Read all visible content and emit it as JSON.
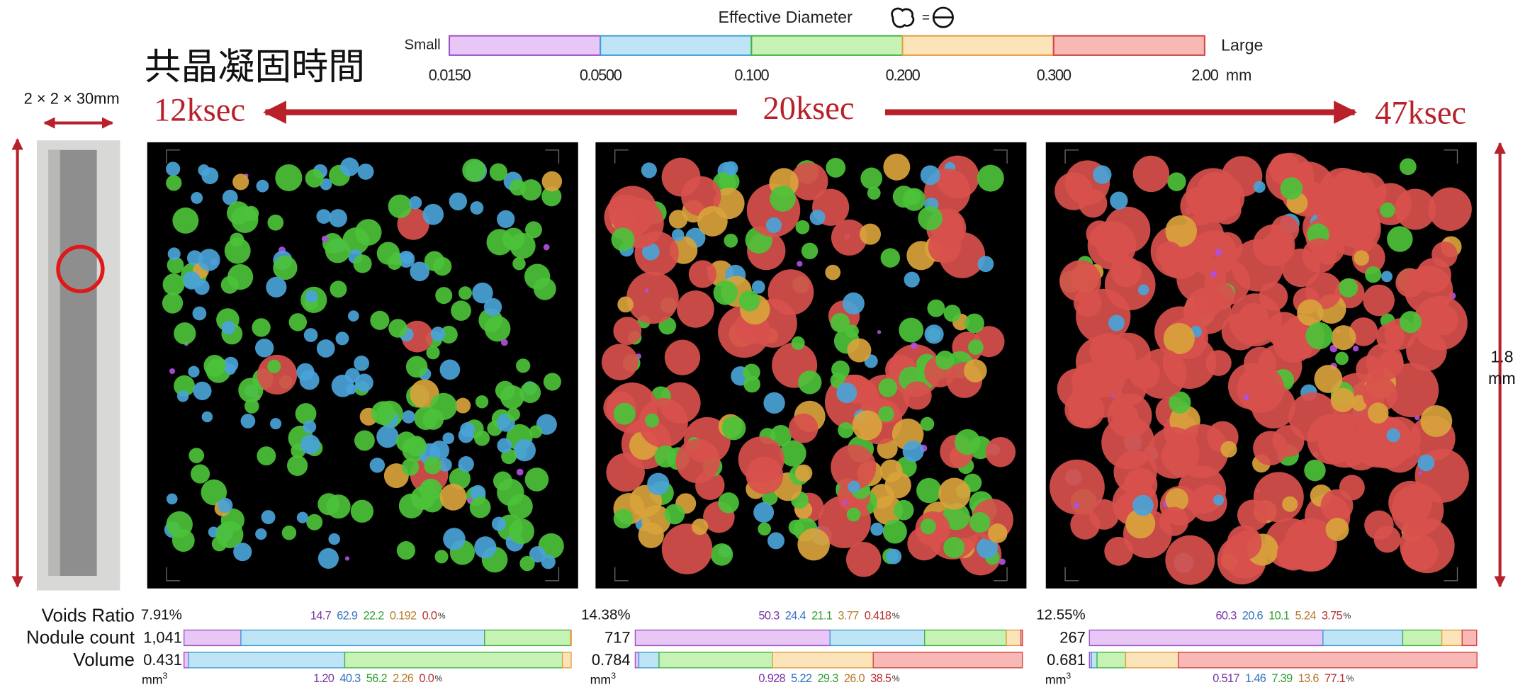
{
  "header": {
    "title": "共晶凝固時間",
    "specimen": "2 × 2 × 30mm",
    "times": [
      "12ksec",
      "20ksec",
      "47ksec"
    ],
    "scale_value": "1.8",
    "scale_unit": "mm"
  },
  "legend": {
    "title": "Effective Diameter",
    "small": "Small",
    "large": "Large",
    "unit": "mm",
    "ticks": [
      "0.0150",
      "0.0500",
      "0.100",
      "0.200",
      "0.300",
      "2.00"
    ],
    "fills": [
      "#e8c6f6",
      "#bfe4f6",
      "#c6f2b6",
      "#fbe4ba",
      "#f8b8b5"
    ],
    "strokes": [
      "#9b52c4",
      "#3d9ed6",
      "#44b444",
      "#e0a040",
      "#d04444"
    ],
    "text_colors": [
      "#7a35a8",
      "#3572c0",
      "#34a034",
      "#b87a2c",
      "#b83030"
    ]
  },
  "rows": {
    "voids_ratio": "Voids Ratio",
    "nodule_count": "Nodule count",
    "volume": "Volume",
    "unit_base": "mm",
    "unit_exp": "3",
    "percent_sign": "%"
  },
  "panels": [
    {
      "voids_ratio": "7.91%",
      "nodule_count": "1,041",
      "volume": "0.431",
      "count_shares": {
        "values": [
          14.7,
          62.9,
          22.2,
          0.192,
          0.0
        ],
        "value_labels": [
          "14.7",
          "62.9",
          "22.2",
          "0.192",
          "0.0"
        ]
      },
      "volume_shares": {
        "values": [
          1.2,
          40.3,
          56.2,
          2.26,
          0.0
        ],
        "value_labels": [
          "1.20",
          "40.3",
          "56.2",
          "2.26",
          "0.0"
        ]
      }
    },
    {
      "voids_ratio": "14.38%",
      "nodule_count": "717",
      "volume": "0.784",
      "count_shares": {
        "values": [
          50.3,
          24.4,
          21.1,
          3.77,
          0.418
        ],
        "value_labels": [
          "50.3",
          "24.4",
          "21.1",
          "3.77",
          "0.418"
        ]
      },
      "volume_shares": {
        "values": [
          0.928,
          5.22,
          29.3,
          26.0,
          38.5
        ],
        "value_labels": [
          "0.928",
          "5.22",
          "29.3",
          "26.0",
          "38.5"
        ]
      }
    },
    {
      "voids_ratio": "12.55%",
      "nodule_count": "267",
      "volume": "0.681",
      "count_shares": {
        "values": [
          60.3,
          20.6,
          10.1,
          5.24,
          3.75
        ],
        "value_labels": [
          "60.3",
          "20.6",
          "10.1",
          "5.24",
          "3.75"
        ]
      },
      "volume_shares": {
        "values": [
          0.517,
          1.46,
          7.39,
          13.6,
          77.1
        ],
        "value_labels": [
          "0.517",
          "1.46",
          "7.39",
          "13.6",
          "77.1"
        ]
      }
    }
  ]
}
